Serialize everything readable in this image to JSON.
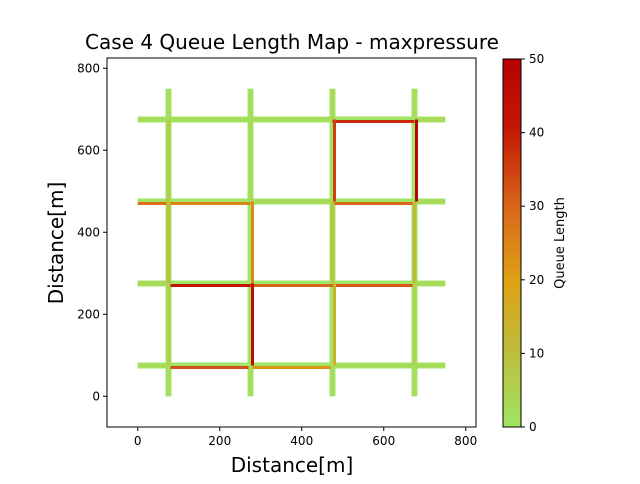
{
  "chart_data": {
    "type": "heatmap",
    "title": "Case 4 Queue Length Map - maxpressure",
    "xlabel": "Distance[m]",
    "ylabel": "Distance[m]",
    "xlim": [
      -75,
      825
    ],
    "ylim": [
      -75,
      825
    ],
    "x_ticks": [
      0,
      200,
      400,
      600,
      800
    ],
    "y_ticks": [
      0,
      200,
      400,
      600,
      800
    ],
    "grid": false,
    "colorbar": {
      "label": "Queue Length",
      "min": 0,
      "max": 50,
      "ticks": [
        0,
        10,
        20,
        30,
        40,
        50
      ],
      "colors": [
        "#a0e564",
        "#bdbd3c",
        "#dea114",
        "#d9651a",
        "#c41a05",
        "#b50000"
      ]
    },
    "road_grid": {
      "vertical_x": [
        75,
        275,
        475,
        675
      ],
      "horizontal_y": [
        75,
        275,
        475,
        675
      ],
      "extent": [
        0,
        750
      ]
    },
    "segments": [
      {
        "orientation": "h",
        "y": 675,
        "x0": 0,
        "x1": 75,
        "queue": 2
      },
      {
        "orientation": "h",
        "y": 675,
        "x0": 75,
        "x1": 275,
        "queue": 2
      },
      {
        "orientation": "h",
        "y": 675,
        "x0": 275,
        "x1": 475,
        "queue": 2
      },
      {
        "orientation": "h",
        "y": 675,
        "x0": 475,
        "x1": 675,
        "queue": 38
      },
      {
        "orientation": "h",
        "y": 675,
        "x0": 675,
        "x1": 750,
        "queue": 3
      },
      {
        "orientation": "h",
        "y": 475,
        "x0": 0,
        "x1": 75,
        "queue": 28
      },
      {
        "orientation": "h",
        "y": 475,
        "x0": 75,
        "x1": 275,
        "queue": 25
      },
      {
        "orientation": "h",
        "y": 475,
        "x0": 275,
        "x1": 475,
        "queue": 3
      },
      {
        "orientation": "h",
        "y": 475,
        "x0": 475,
        "x1": 675,
        "queue": 30
      },
      {
        "orientation": "h",
        "y": 475,
        "x0": 675,
        "x1": 750,
        "queue": 3
      },
      {
        "orientation": "h",
        "y": 275,
        "x0": 0,
        "x1": 75,
        "queue": 3
      },
      {
        "orientation": "h",
        "y": 275,
        "x0": 75,
        "x1": 275,
        "queue": 42
      },
      {
        "orientation": "h",
        "y": 275,
        "x0": 275,
        "x1": 475,
        "queue": 30
      },
      {
        "orientation": "h",
        "y": 275,
        "x0": 475,
        "x1": 675,
        "queue": 32
      },
      {
        "orientation": "h",
        "y": 275,
        "x0": 675,
        "x1": 750,
        "queue": 3
      },
      {
        "orientation": "h",
        "y": 75,
        "x0": 0,
        "x1": 75,
        "queue": 3
      },
      {
        "orientation": "h",
        "y": 75,
        "x0": 75,
        "x1": 275,
        "queue": 33
      },
      {
        "orientation": "h",
        "y": 75,
        "x0": 275,
        "x1": 475,
        "queue": 22
      },
      {
        "orientation": "h",
        "y": 75,
        "x0": 475,
        "x1": 675,
        "queue": 3
      },
      {
        "orientation": "h",
        "y": 75,
        "x0": 675,
        "x1": 750,
        "queue": 3
      },
      {
        "orientation": "v",
        "x": 75,
        "y0": 0,
        "y1": 75,
        "queue": 2
      },
      {
        "orientation": "v",
        "x": 75,
        "y0": 75,
        "y1": 275,
        "queue": 5
      },
      {
        "orientation": "v",
        "x": 75,
        "y0": 275,
        "y1": 475,
        "queue": 9
      },
      {
        "orientation": "v",
        "x": 75,
        "y0": 475,
        "y1": 675,
        "queue": 6
      },
      {
        "orientation": "v",
        "x": 75,
        "y0": 675,
        "y1": 750,
        "queue": 2
      },
      {
        "orientation": "v",
        "x": 275,
        "y0": 0,
        "y1": 75,
        "queue": 2
      },
      {
        "orientation": "v",
        "x": 275,
        "y0": 75,
        "y1": 275,
        "queue": 45
      },
      {
        "orientation": "v",
        "x": 275,
        "y0": 275,
        "y1": 475,
        "queue": 24
      },
      {
        "orientation": "v",
        "x": 275,
        "y0": 475,
        "y1": 675,
        "queue": 3
      },
      {
        "orientation": "v",
        "x": 275,
        "y0": 675,
        "y1": 750,
        "queue": 2
      },
      {
        "orientation": "v",
        "x": 475,
        "y0": 0,
        "y1": 75,
        "queue": 2
      },
      {
        "orientation": "v",
        "x": 475,
        "y0": 75,
        "y1": 275,
        "queue": 14
      },
      {
        "orientation": "v",
        "x": 475,
        "y0": 275,
        "y1": 475,
        "queue": 8
      },
      {
        "orientation": "v",
        "x": 475,
        "y0": 475,
        "y1": 675,
        "queue": 35
      },
      {
        "orientation": "v",
        "x": 475,
        "y0": 675,
        "y1": 750,
        "queue": 3
      },
      {
        "orientation": "v",
        "x": 675,
        "y0": 0,
        "y1": 75,
        "queue": 2
      },
      {
        "orientation": "v",
        "x": 675,
        "y0": 75,
        "y1": 275,
        "queue": 4
      },
      {
        "orientation": "v",
        "x": 675,
        "y0": 275,
        "y1": 475,
        "queue": 10
      },
      {
        "orientation": "v",
        "x": 675,
        "y0": 475,
        "y1": 675,
        "queue": 48
      },
      {
        "orientation": "v",
        "x": 675,
        "y0": 675,
        "y1": 750,
        "queue": 2
      }
    ]
  }
}
